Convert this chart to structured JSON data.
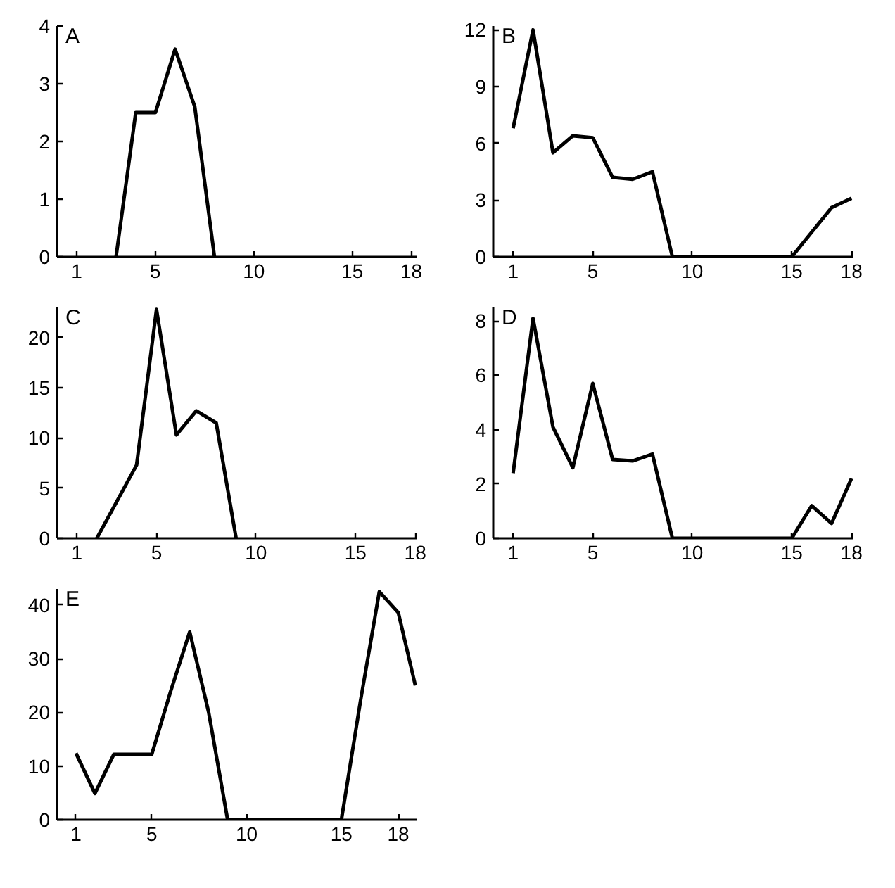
{
  "chart_data": [
    {
      "type": "line",
      "title": "A",
      "x": [
        3,
        4,
        5,
        6,
        7,
        8
      ],
      "series": [
        {
          "color": "#000000",
          "values": [
            0,
            2.5,
            2.5,
            3.6,
            2.6,
            0
          ]
        }
      ],
      "xlim": [
        0,
        18.3
      ],
      "ylim": [
        0,
        4
      ],
      "xticks": [
        1,
        5,
        10,
        15,
        18
      ],
      "yticks": [
        0,
        1,
        2,
        3,
        4
      ],
      "grid": false
    },
    {
      "type": "line",
      "title": "B",
      "x": [
        1,
        2,
        3,
        4,
        5,
        6,
        7,
        8,
        9,
        15,
        16,
        17,
        18
      ],
      "series": [
        {
          "color": "#000000",
          "values": [
            6.8,
            12,
            5.5,
            6.4,
            6.3,
            4.2,
            4.1,
            4.5,
            0,
            0,
            1.3,
            2.6,
            3.1
          ]
        }
      ],
      "xlim": [
        0,
        18.1
      ],
      "ylim": [
        0,
        12.2
      ],
      "xticks": [
        1,
        5,
        10,
        15,
        18
      ],
      "yticks": [
        0,
        3,
        6,
        9,
        12
      ],
      "grid": false
    },
    {
      "type": "line",
      "title": "C",
      "x": [
        2,
        4,
        5,
        6,
        7,
        8,
        9
      ],
      "series": [
        {
          "color": "#000000",
          "values": [
            0,
            7.3,
            22.8,
            10.3,
            12.7,
            11.5,
            0
          ]
        }
      ],
      "xlim": [
        0,
        18.1
      ],
      "ylim": [
        0,
        23
      ],
      "xticks": [
        1,
        5,
        10,
        15,
        18
      ],
      "yticks": [
        0,
        5,
        10,
        15,
        20
      ],
      "grid": false
    },
    {
      "type": "line",
      "title": "D",
      "x": [
        1,
        2,
        3,
        4,
        5,
        6,
        7,
        8,
        9,
        15,
        16,
        17,
        18
      ],
      "series": [
        {
          "color": "#000000",
          "values": [
            2.4,
            8.1,
            4.1,
            2.6,
            5.7,
            2.9,
            2.85,
            3.1,
            0,
            0,
            1.2,
            0.55,
            2.2
          ]
        }
      ],
      "xlim": [
        0,
        18.1
      ],
      "ylim": [
        0,
        8.5
      ],
      "xticks": [
        1,
        5,
        10,
        15,
        18
      ],
      "yticks": [
        0,
        2,
        4,
        6,
        8
      ],
      "grid": false
    },
    {
      "type": "line",
      "title": "E",
      "x": [
        1,
        2,
        3,
        4,
        5,
        6,
        7,
        8,
        9,
        15,
        16,
        17,
        18,
        18.9
      ],
      "series": [
        {
          "color": "#000000",
          "values": [
            12.4,
            4.9,
            12.2,
            12.2,
            12.2,
            24,
            35,
            20,
            0,
            0,
            22,
            42.5,
            38.6,
            25
          ]
        }
      ],
      "xlim": [
        0,
        19
      ],
      "ylim": [
        0,
        43
      ],
      "xticks": [
        1,
        5,
        10,
        15,
        18
      ],
      "yticks": [
        0,
        10,
        20,
        30,
        40
      ],
      "grid": false
    }
  ]
}
